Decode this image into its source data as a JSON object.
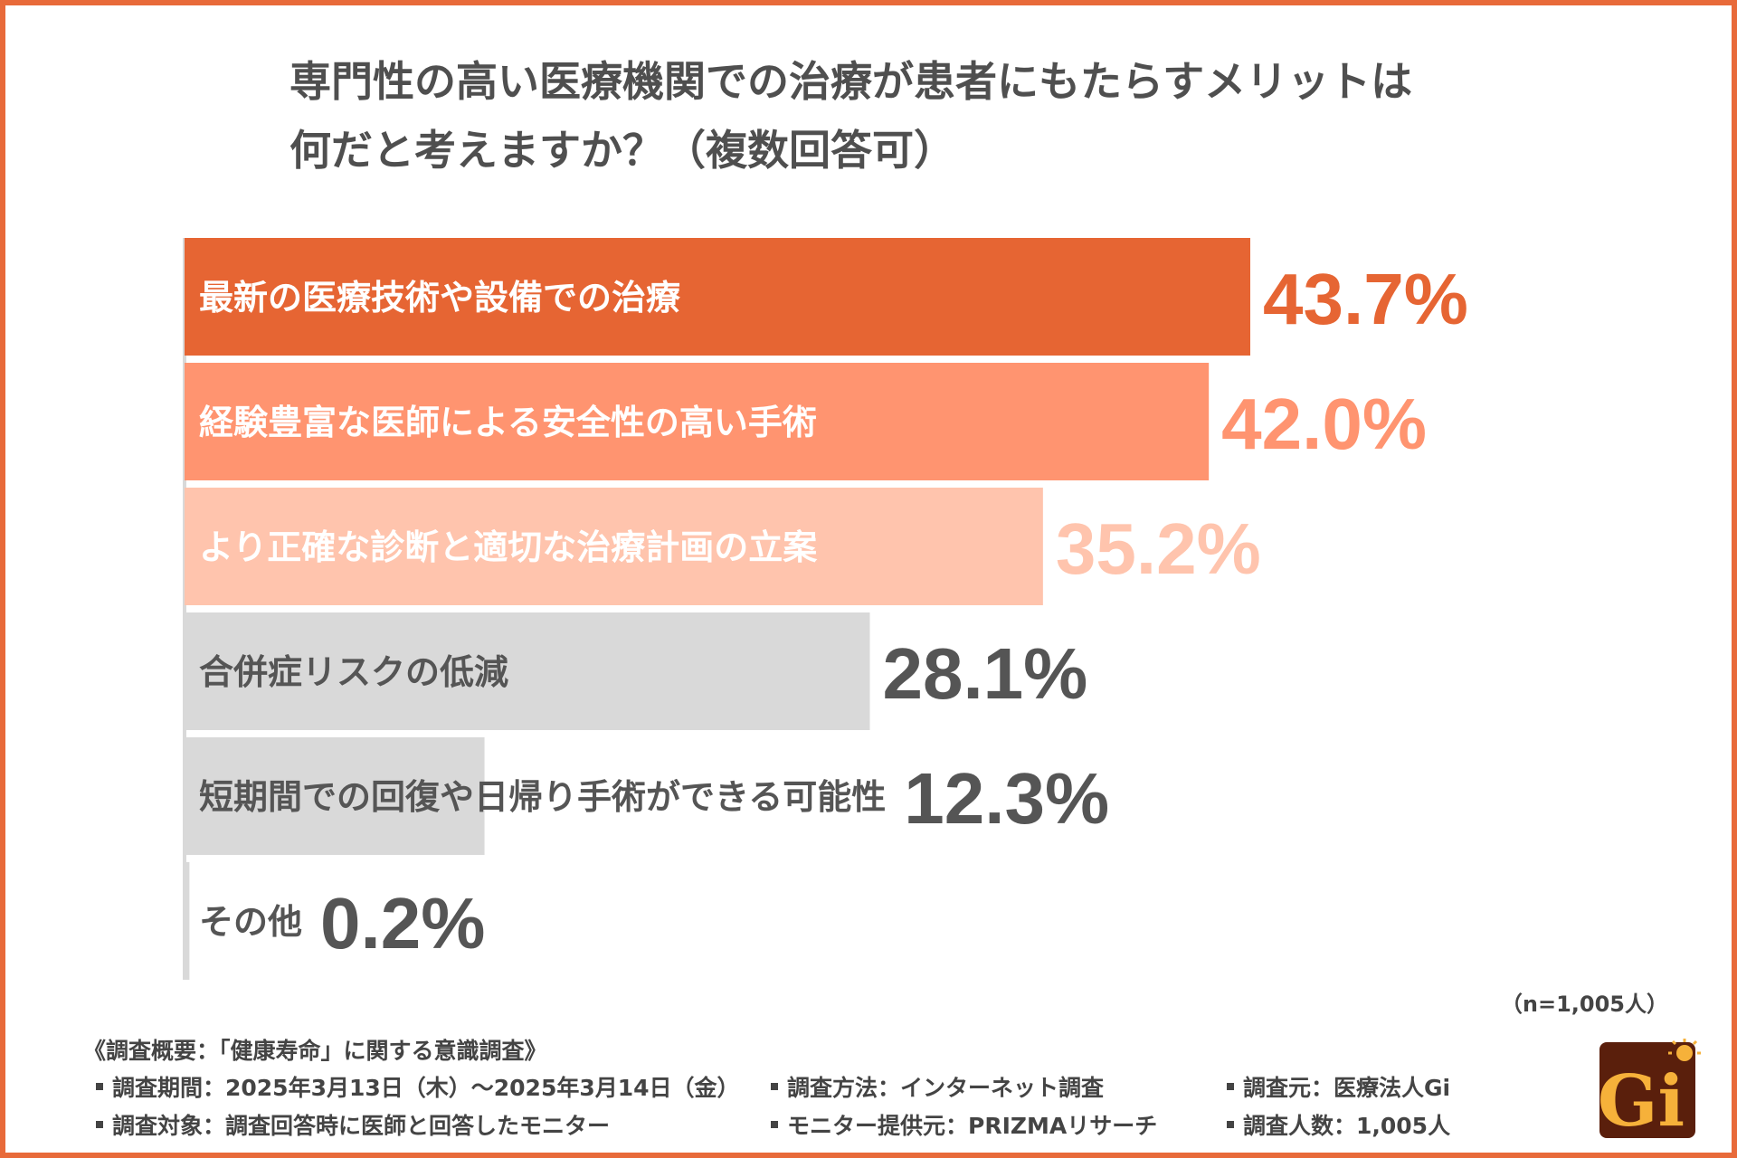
{
  "title": {
    "line1": "専門性の高い医療機関での治療が患者にもたらすメリットは",
    "line2": "何だと考えますか？（複数回答可）"
  },
  "chart_data": {
    "type": "bar",
    "orientation": "horizontal",
    "categories": [
      "最新の医療技術や設備での治療",
      "経験豊富な医師による安全性の高い手術",
      "より正確な診断と適切な治療計画の立案",
      "合併症リスクの低減",
      "短期間での回復や日帰り手術ができる可能性",
      "その他"
    ],
    "values": [
      43.7,
      42.0,
      35.2,
      28.1,
      12.3,
      0.2
    ],
    "value_labels": [
      "43.7%",
      "42.0%",
      "35.2%",
      "28.1%",
      "12.3%",
      "0.2%"
    ],
    "unit": "%",
    "bar_colors": [
      "#e66533",
      "#ff9470",
      "#ffc4ad",
      "#d9d9d9",
      "#d9d9d9",
      "#d9d9d9"
    ],
    "label_colors_inside": [
      "#ffffff",
      "#ffffff",
      "#ffffff",
      "#555555",
      "#555555",
      "#555555"
    ],
    "value_label_colors": [
      "#e66533",
      "#ff9470",
      "#ffc4ad",
      "#555555",
      "#555555",
      "#555555"
    ],
    "grid": false,
    "legend": "none"
  },
  "sample_size": "（n=1,005人）",
  "survey": {
    "title": "《調査概要：「健康寿命」に関する意識調査》",
    "period": "調査期間：2025年3月13日（木）～2025年3月14日（金）",
    "method": "調査方法：インターネット調査",
    "source": "調査元：医療法人Gi",
    "target": "調査対象：調査回答時に医師と回答したモニター",
    "provider": "モニター提供元：PRIZMAリサーチ",
    "count": "調査人数：1,005人"
  },
  "logo": {
    "text": "Gi",
    "icon": "gi-logo",
    "bg_color": "#5a1f0c",
    "fg_color": "#f6b13a"
  }
}
